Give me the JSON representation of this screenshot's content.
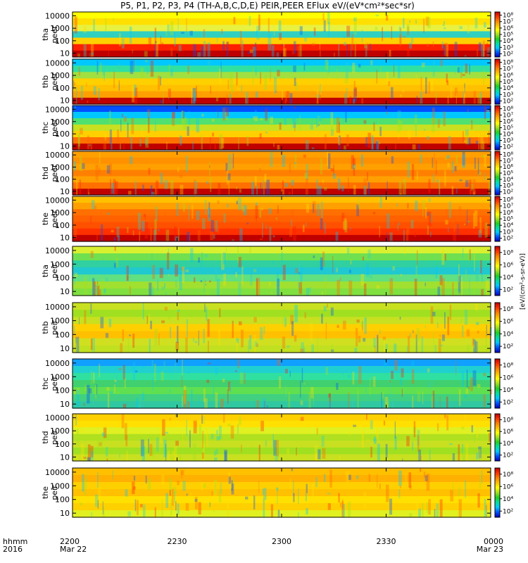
{
  "chart_data": {
    "type": "heatmap",
    "title": "P5, P1, P2, P3, P4 (TH-A,B,C,D,E) PEIR,PEER EFlux eV/(eV*cm²*sec*sr)",
    "xaxis": {
      "header_lines": [
        "hhmm",
        "2016"
      ],
      "ticks": [
        {
          "time": "2200",
          "date": "Mar 22"
        },
        {
          "time": "2230",
          "date": ""
        },
        {
          "time": "2300",
          "date": ""
        },
        {
          "time": "2330",
          "date": ""
        },
        {
          "time": "0000",
          "date": "Mar 23"
        }
      ]
    },
    "yaxis": {
      "scale": "log",
      "ylim": [
        5,
        20000
      ],
      "ticks": [
        "10",
        "100",
        "1000",
        "10000"
      ]
    },
    "colorbar": {
      "scale": "log",
      "ticks_electron": [
        "10²",
        "10³",
        "10⁴",
        "10⁵",
        "10⁶",
        "10⁷",
        "10⁸"
      ],
      "ticks_ion": [
        "10²",
        "10⁴",
        "10⁶",
        "10⁸"
      ],
      "colors": [
        "#0000bb",
        "#0050ff",
        "#00c8ff",
        "#00e0a0",
        "#20d020",
        "#a0e020",
        "#ffff00",
        "#ffc000",
        "#ff8000",
        "#ff3000",
        "#c00000"
      ]
    },
    "units_label": "[eV/(cm²-s-sr-eV)]",
    "panels": [
      {
        "probe": "tha",
        "species": "peer",
        "label_lines": [
          "tha",
          "peer"
        ]
      },
      {
        "probe": "thb",
        "species": "peer",
        "label_lines": [
          "thb",
          "peer"
        ]
      },
      {
        "probe": "thc",
        "species": "peer",
        "label_lines": [
          "thc",
          "peer"
        ]
      },
      {
        "probe": "thd",
        "species": "peer",
        "label_lines": [
          "thd",
          "peer"
        ]
      },
      {
        "probe": "the",
        "species": "peer",
        "label_lines": [
          "the",
          "peer"
        ]
      },
      {
        "probe": "tha",
        "species": "peir",
        "label_lines": [
          "tha",
          "peir"
        ]
      },
      {
        "probe": "thb",
        "species": "peir",
        "label_lines": [
          "thb",
          "peir"
        ]
      },
      {
        "probe": "thc",
        "species": "peir",
        "label_lines": [
          "thc",
          "peir"
        ]
      },
      {
        "probe": "thd",
        "species": "peir",
        "label_lines": [
          "thd",
          "peir"
        ]
      },
      {
        "probe": "the",
        "species": "peir",
        "label_lines": [
          "the",
          "peir"
        ]
      }
    ]
  }
}
